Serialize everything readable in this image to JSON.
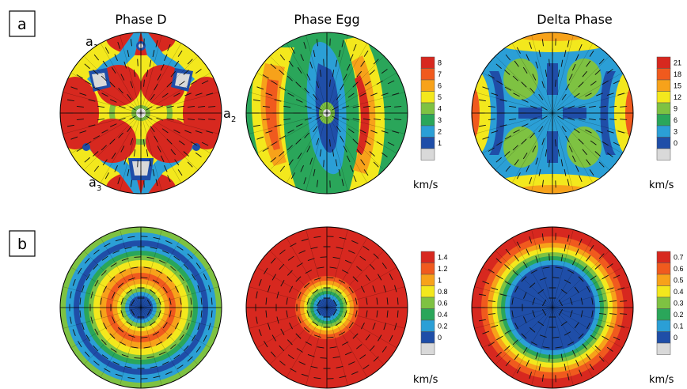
{
  "panels": {
    "a": {
      "label": "a"
    },
    "b": {
      "label": "b"
    }
  },
  "titles": [
    "Phase D",
    "Phase Egg",
    "Delta Phase"
  ],
  "axes_labels": {
    "a1": {
      "main": "a",
      "sub": "1"
    },
    "a2": {
      "main": "a",
      "sub": "2"
    },
    "a3": {
      "main": "a",
      "sub": "3"
    }
  },
  "palette": [
    "#d9d9d9",
    "#1f4ea8",
    "#2b9fd6",
    "#2aa65a",
    "#7ec242",
    "#f3e81d",
    "#f7a21a",
    "#f05a1e",
    "#d7281f"
  ],
  "chart_data": [
    {
      "type": "heatmap",
      "row": "a",
      "title": "Phase D",
      "projection": "pole-figure",
      "pattern": "hexagonal",
      "colorbar": "a-left"
    },
    {
      "type": "heatmap",
      "row": "a",
      "title": "Phase Egg",
      "projection": "pole-figure",
      "pattern": "monoclinic",
      "colorbar": "a-left",
      "colorbar_unit": "km/s",
      "colorbar_ticks": [
        "8",
        "7",
        "6",
        "5",
        "4",
        "3",
        "2",
        "1"
      ]
    },
    {
      "type": "heatmap",
      "row": "a",
      "title": "Delta Phase",
      "projection": "pole-figure",
      "pattern": "orthorhombic",
      "colorbar": "a-right",
      "colorbar_unit": "km/s",
      "colorbar_ticks": [
        "21",
        "18",
        "15",
        "12",
        "9",
        "6",
        "3",
        "0"
      ]
    },
    {
      "type": "heatmap",
      "row": "b",
      "projection": "pole-figure",
      "pattern": "radial-rings",
      "colorbar": "b-left"
    },
    {
      "type": "heatmap",
      "row": "b",
      "projection": "pole-figure",
      "pattern": "radial-center",
      "colorbar": "b-left",
      "colorbar_unit": "km/s",
      "colorbar_ticks": [
        "1.4",
        "1.2",
        "1",
        "0.8",
        "0.6",
        "0.4",
        "0.2",
        "0"
      ]
    },
    {
      "type": "heatmap",
      "row": "b",
      "projection": "pole-figure",
      "pattern": "radial-wide",
      "colorbar": "b-right",
      "colorbar_unit": "km/s",
      "colorbar_ticks": [
        "0.7",
        "0.6",
        "0.5",
        "0.4",
        "0.3",
        "0.2",
        "0.1",
        "0"
      ]
    }
  ]
}
